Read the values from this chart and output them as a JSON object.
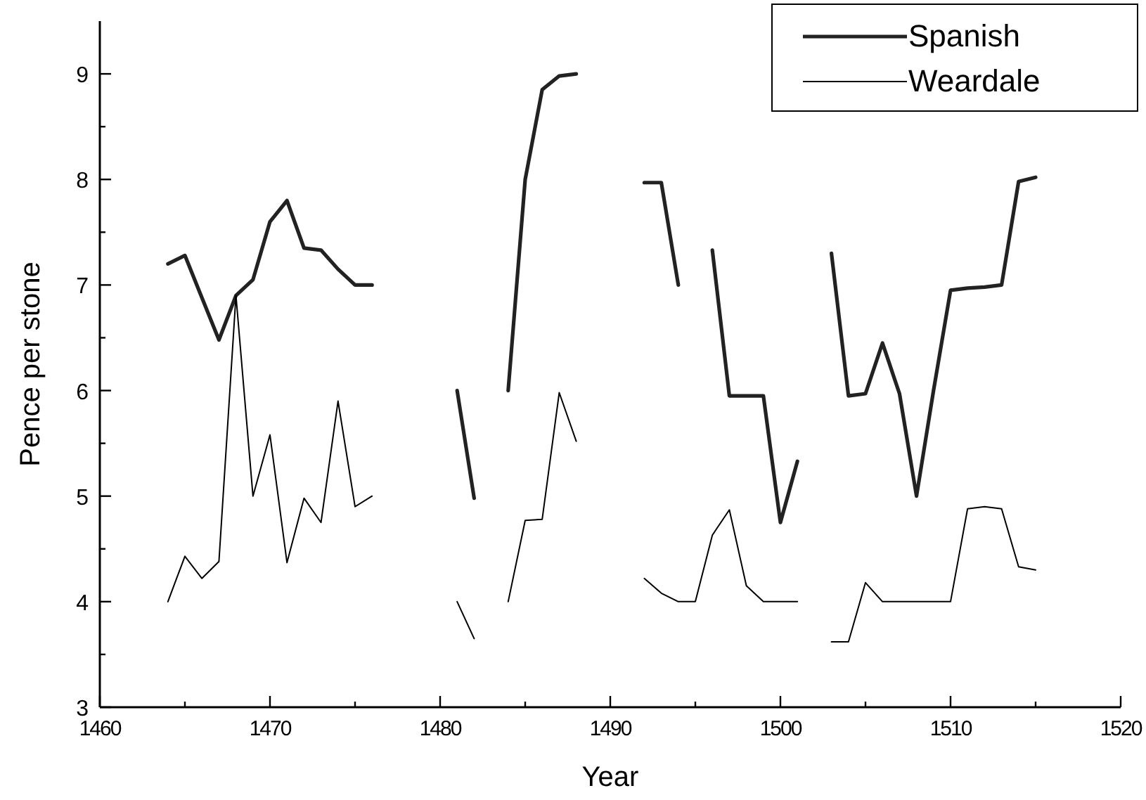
{
  "chart_data": {
    "type": "line",
    "xlabel": "Year",
    "ylabel": "Pence per stone",
    "x": [
      1464,
      1465,
      1466,
      1467,
      1468,
      1469,
      1470,
      1471,
      1472,
      1473,
      1474,
      1475,
      1476,
      1477,
      1478,
      1479,
      1480,
      1481,
      1482,
      1483,
      1484,
      1485,
      1486,
      1487,
      1488,
      1489,
      1490,
      1491,
      1492,
      1493,
      1494,
      1495,
      1496,
      1497,
      1498,
      1499,
      1500,
      1501,
      1502,
      1503,
      1504,
      1505,
      1506,
      1507,
      1508,
      1509,
      1510,
      1511,
      1512,
      1513,
      1514,
      1515
    ],
    "series": [
      {
        "name": "Spanish",
        "color": "#222222",
        "values": [
          7.2,
          7.28,
          6.88,
          6.48,
          6.9,
          7.05,
          7.6,
          7.8,
          7.35,
          7.33,
          7.15,
          7.0,
          7.0,
          null,
          null,
          null,
          null,
          6.0,
          4.98,
          null,
          6.0,
          8.0,
          8.85,
          8.98,
          9.0,
          null,
          null,
          null,
          7.97,
          7.97,
          7.0,
          null,
          7.33,
          5.95,
          5.95,
          5.95,
          4.75,
          5.33,
          null,
          7.3,
          5.95,
          5.97,
          6.45,
          5.97,
          5.0,
          6.0,
          6.95,
          6.97,
          6.98,
          7.0,
          7.98,
          8.02
        ]
      },
      {
        "name": "Weardale",
        "color": "#000000",
        "values": [
          4.0,
          4.43,
          4.22,
          4.38,
          6.9,
          5.0,
          5.58,
          4.37,
          4.98,
          4.75,
          5.9,
          4.9,
          5.0,
          null,
          null,
          null,
          null,
          4.0,
          3.65,
          null,
          4.0,
          4.77,
          4.78,
          5.98,
          5.52,
          null,
          null,
          null,
          4.22,
          4.08,
          4.0,
          4.0,
          4.63,
          4.87,
          4.15,
          4.0,
          4.0,
          4.0,
          null,
          3.62,
          3.62,
          4.18,
          4.0,
          4.0,
          4.0,
          4.0,
          4.0,
          4.88,
          4.9,
          4.88,
          4.33,
          4.3
        ]
      }
    ],
    "xlim": [
      1460,
      1520
    ],
    "xticks": [
      1460,
      {
        "value": 1465,
        "label": null
      },
      1470,
      {
        "value": 1475,
        "label": null
      },
      1480,
      {
        "value": 1485,
        "label": null
      },
      1490,
      {
        "value": 1495,
        "label": null
      },
      1500,
      {
        "value": 1505,
        "label": null
      },
      1510,
      {
        "value": 1515,
        "label": null
      },
      1520
    ],
    "ylim": [
      3,
      9.5
    ],
    "yticks": [
      3,
      {
        "value": 3.5,
        "label": null
      },
      4,
      {
        "value": 4.5,
        "label": null
      },
      5,
      {
        "value": 5.5,
        "label": null
      },
      6,
      {
        "value": 6.5,
        "label": null
      },
      7,
      {
        "value": 7.5,
        "label": null
      },
      8,
      {
        "value": 8.5,
        "label": null
      },
      9
    ],
    "grid": false,
    "legend": "top right",
    "marker": "none",
    "line_style": "solid"
  }
}
